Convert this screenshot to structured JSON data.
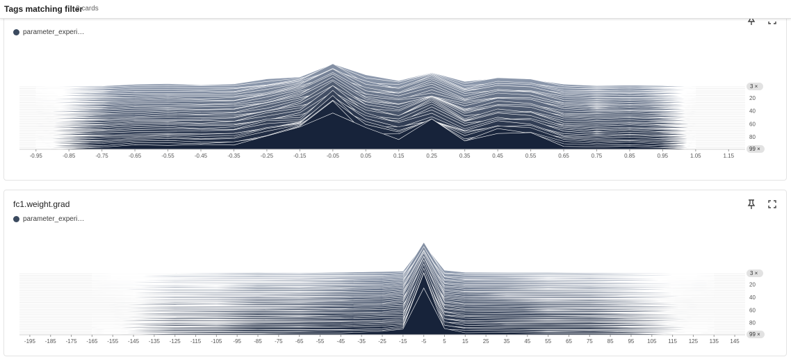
{
  "header": {
    "title": "Tags matching filter",
    "count": "2 cards"
  },
  "colors": {
    "fill_top": "#8e9aae",
    "fill_bottom": "#17233a",
    "stroke": "#ffffff",
    "axis": "#d0d0d0"
  },
  "icons": {
    "pin": "pin-icon",
    "expand": "fullscreen-icon"
  },
  "cards": [
    {
      "title": "",
      "legend": "parameter_experi…",
      "pill_top": "3 ×",
      "pill_bottom": "99 ×",
      "chart_data": {
        "type": "histogram-offset",
        "x_ticks": [
          "-0.95",
          "-0.85",
          "-0.75",
          "-0.65",
          "-0.55",
          "-0.45",
          "-0.35",
          "-0.25",
          "-0.15",
          "-0.05",
          "0.05",
          "0.15",
          "0.25",
          "0.35",
          "0.45",
          "0.55",
          "0.65",
          "0.75",
          "0.85",
          "0.95",
          "1.05",
          "1.15"
        ],
        "x_range": [
          -1.0,
          1.2
        ],
        "step_ticks": [
          "20",
          "40",
          "60",
          "80"
        ],
        "step_range": [
          3,
          99
        ],
        "bins": [
          -0.95,
          -0.85,
          -0.75,
          -0.65,
          -0.55,
          -0.45,
          -0.35,
          -0.25,
          -0.15,
          -0.05,
          0.05,
          0.15,
          0.25,
          0.35,
          0.45,
          0.55,
          0.65,
          0.75,
          0.85,
          0.95,
          1.05
        ],
        "peak_pattern": [
          0.0,
          0.02,
          0.05,
          0.1,
          0.12,
          0.1,
          0.12,
          0.3,
          0.5,
          1.0,
          0.45,
          0.3,
          0.65,
          0.2,
          0.4,
          0.35,
          0.1,
          0.05,
          0.08,
          0.04,
          0.0
        ]
      }
    },
    {
      "title": "fc1.weight.grad",
      "legend": "parameter_experi…",
      "pill_top": "3 ×",
      "pill_bottom": "99 ×",
      "chart_data": {
        "type": "histogram-offset",
        "x_ticks": [
          "-195",
          "-185",
          "-175",
          "-165",
          "-155",
          "-145",
          "-135",
          "-125",
          "-115",
          "-105",
          "-95",
          "-85",
          "-75",
          "-65",
          "-55",
          "-45",
          "-35",
          "-25",
          "-15",
          "-5",
          "5",
          "15",
          "25",
          "35",
          "45",
          "55",
          "65",
          "75",
          "85",
          "95",
          "105",
          "115",
          "125",
          "135",
          "145"
        ],
        "x_range": [
          -200,
          150
        ],
        "step_ticks": [
          "20",
          "40",
          "60",
          "80"
        ],
        "step_range": [
          3,
          99
        ],
        "bins": [
          -165,
          -145,
          -125,
          -105,
          -85,
          -65,
          -45,
          -25,
          -15,
          -5,
          5,
          15,
          35,
          55,
          75,
          95,
          115,
          135
        ],
        "peak_pattern": [
          0.0,
          0.01,
          0.02,
          0.02,
          0.03,
          0.03,
          0.04,
          0.06,
          0.1,
          1.0,
          0.1,
          0.05,
          0.04,
          0.03,
          0.03,
          0.02,
          0.01,
          0.0
        ]
      }
    }
  ]
}
